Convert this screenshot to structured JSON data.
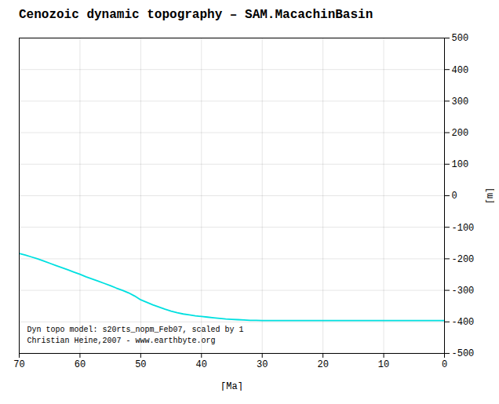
{
  "chart_data": {
    "type": "line",
    "title": "Cenozoic dynamic topography – SAM.MacachinBasin",
    "x_label": "[Ma]",
    "y_label": "[m]",
    "annotations": [
      "Dyn topo model: s20rts_nopm_Feb07, scaled by 1",
      "Christian Heine,2007 - www.earthbyte.org"
    ],
    "x": [
      70,
      69,
      68,
      67,
      66,
      65,
      64,
      63,
      62,
      61,
      60,
      59,
      58,
      57,
      56,
      55,
      54,
      53,
      52,
      51,
      50,
      49,
      48,
      47,
      46,
      45,
      44,
      43,
      42,
      41,
      40,
      39,
      38,
      37,
      36,
      35,
      34,
      33,
      32,
      31,
      30,
      29,
      28,
      27,
      26,
      25,
      24,
      23,
      22,
      21,
      20,
      19,
      18,
      17,
      16,
      15,
      14,
      13,
      12,
      11,
      10,
      9,
      8,
      7,
      6,
      5,
      4,
      3,
      2,
      1,
      0
    ],
    "values": [
      -183,
      -188,
      -194,
      -200,
      -207,
      -214,
      -221,
      -228,
      -235,
      -242,
      -249,
      -257,
      -264,
      -271,
      -278,
      -285,
      -293,
      -300,
      -308,
      -318,
      -330,
      -338,
      -346,
      -353,
      -360,
      -366,
      -371,
      -375,
      -378,
      -381,
      -383,
      -385,
      -387,
      -389,
      -391,
      -392,
      -393,
      -394,
      -395,
      -395,
      -396,
      -396,
      -396,
      -396,
      -396,
      -396,
      -396,
      -396,
      -396,
      -396,
      -396,
      -396,
      -396,
      -396,
      -396,
      -396,
      -396,
      -396,
      -396,
      -396,
      -396,
      -396,
      -396,
      -396,
      -396,
      -396,
      -396,
      -396,
      -396,
      -396,
      -396
    ],
    "color": "#00e0e0",
    "xlim": [
      70,
      0
    ],
    "ylim": [
      -500,
      500
    ],
    "xticks": [
      70,
      60,
      50,
      40,
      30,
      20,
      10,
      0
    ],
    "yticks": [
      -500,
      -400,
      -300,
      -200,
      -100,
      0,
      100,
      200,
      300,
      400,
      500
    ],
    "grid": true
  }
}
